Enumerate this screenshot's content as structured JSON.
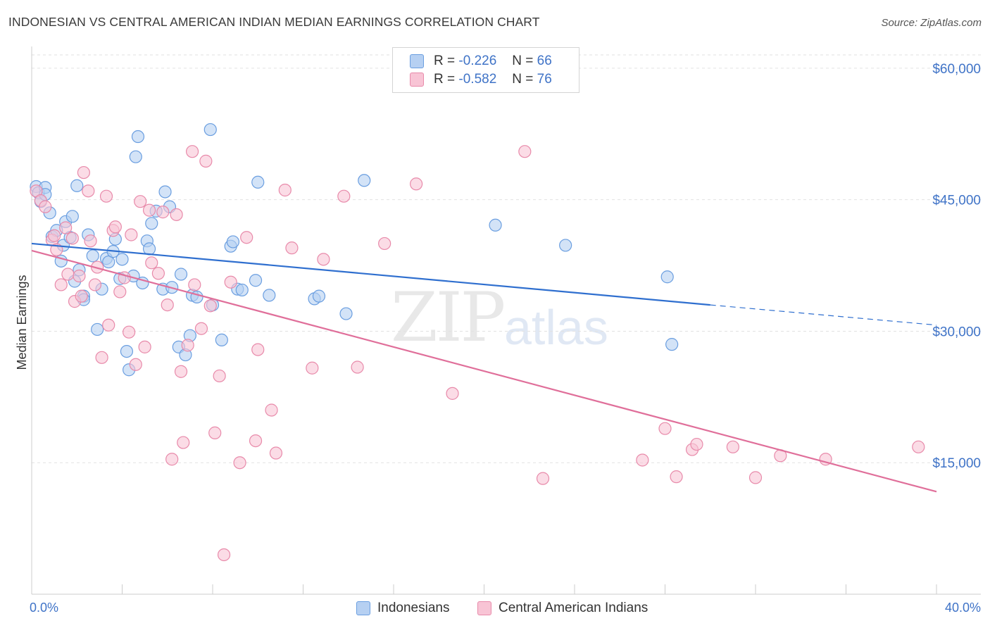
{
  "title": "INDONESIAN VS CENTRAL AMERICAN INDIAN MEDIAN EARNINGS CORRELATION CHART",
  "source": "Source: ZipAtlas.com",
  "legend": {
    "r_label": "R =",
    "n_label": "N =",
    "rows": [
      {
        "r": "-0.226",
        "n": "66"
      },
      {
        "r": "-0.582",
        "n": "76"
      }
    ]
  },
  "watermark": {
    "zip": "ZIP",
    "atlas": "atlas"
  },
  "colors": {
    "blue_fill": "#b6d0f2",
    "blue_stroke": "#6a9ee0",
    "blue_line": "#2f6fcf",
    "pink_fill": "#f8c4d5",
    "pink_stroke": "#e88aaa",
    "pink_line": "#e06f9a",
    "tick_text": "#3f73c7"
  },
  "chart_data": {
    "type": "scatter",
    "xlabel": "",
    "ylabel": "Median Earnings",
    "xlim": [
      0,
      40
    ],
    "ylim": [
      0,
      62000
    ],
    "x_tick_labels": [
      "0.0%",
      "40.0%"
    ],
    "y_ticks": [
      15000,
      30000,
      45000,
      60000
    ],
    "y_tick_labels": [
      "$15,000",
      "$30,000",
      "$45,000",
      "$60,000"
    ],
    "grid": true,
    "series": [
      {
        "name": "Indonesians",
        "points": [
          [
            0.2,
            46500
          ],
          [
            0.3,
            45800
          ],
          [
            0.4,
            44800
          ],
          [
            0.6,
            46400
          ],
          [
            0.6,
            45600
          ],
          [
            0.8,
            43500
          ],
          [
            0.9,
            40800
          ],
          [
            1.1,
            41500
          ],
          [
            1.3,
            38000
          ],
          [
            1.4,
            39800
          ],
          [
            1.5,
            42500
          ],
          [
            1.7,
            40700
          ],
          [
            1.8,
            43100
          ],
          [
            1.9,
            35700
          ],
          [
            2.0,
            46600
          ],
          [
            2.1,
            37000
          ],
          [
            2.3,
            34000
          ],
          [
            2.3,
            33600
          ],
          [
            2.5,
            41000
          ],
          [
            2.7,
            38600
          ],
          [
            2.9,
            30200
          ],
          [
            3.1,
            34800
          ],
          [
            3.3,
            38300
          ],
          [
            3.4,
            37900
          ],
          [
            3.6,
            39100
          ],
          [
            3.7,
            40500
          ],
          [
            3.9,
            36000
          ],
          [
            4.0,
            38200
          ],
          [
            4.2,
            27700
          ],
          [
            4.3,
            25600
          ],
          [
            4.5,
            36300
          ],
          [
            4.6,
            49900
          ],
          [
            4.7,
            52200
          ],
          [
            4.9,
            35500
          ],
          [
            5.1,
            40300
          ],
          [
            5.2,
            39400
          ],
          [
            5.3,
            42300
          ],
          [
            5.5,
            43700
          ],
          [
            5.8,
            34800
          ],
          [
            5.9,
            45900
          ],
          [
            6.1,
            44200
          ],
          [
            6.2,
            35000
          ],
          [
            6.5,
            28200
          ],
          [
            6.6,
            36500
          ],
          [
            6.8,
            27300
          ],
          [
            7.0,
            29500
          ],
          [
            7.1,
            34100
          ],
          [
            7.3,
            33900
          ],
          [
            7.9,
            53000
          ],
          [
            8.0,
            33000
          ],
          [
            8.4,
            29000
          ],
          [
            8.8,
            39700
          ],
          [
            8.9,
            40200
          ],
          [
            9.1,
            34800
          ],
          [
            9.3,
            34700
          ],
          [
            9.9,
            35800
          ],
          [
            10.0,
            47000
          ],
          [
            10.5,
            34100
          ],
          [
            12.5,
            33700
          ],
          [
            12.7,
            34000
          ],
          [
            13.9,
            32000
          ],
          [
            14.7,
            47200
          ],
          [
            20.5,
            42100
          ],
          [
            23.6,
            39800
          ],
          [
            28.1,
            36200
          ],
          [
            28.3,
            28500
          ]
        ]
      },
      {
        "name": "Central American Indians",
        "points": [
          [
            0.2,
            46000
          ],
          [
            0.4,
            44900
          ],
          [
            0.6,
            44200
          ],
          [
            0.9,
            40400
          ],
          [
            1.0,
            40900
          ],
          [
            1.1,
            39300
          ],
          [
            1.3,
            35300
          ],
          [
            1.5,
            41800
          ],
          [
            1.6,
            36500
          ],
          [
            1.8,
            40600
          ],
          [
            1.9,
            33400
          ],
          [
            2.1,
            36300
          ],
          [
            2.2,
            34000
          ],
          [
            2.3,
            48100
          ],
          [
            2.5,
            46000
          ],
          [
            2.6,
            40300
          ],
          [
            2.8,
            35300
          ],
          [
            2.9,
            37300
          ],
          [
            3.1,
            27000
          ],
          [
            3.3,
            45400
          ],
          [
            3.4,
            30700
          ],
          [
            3.6,
            41500
          ],
          [
            3.7,
            41900
          ],
          [
            3.9,
            34500
          ],
          [
            4.1,
            36100
          ],
          [
            4.3,
            29900
          ],
          [
            4.4,
            41000
          ],
          [
            4.6,
            26200
          ],
          [
            4.8,
            44800
          ],
          [
            5.0,
            28200
          ],
          [
            5.2,
            43800
          ],
          [
            5.3,
            37800
          ],
          [
            5.6,
            36600
          ],
          [
            5.8,
            43600
          ],
          [
            6.0,
            33000
          ],
          [
            6.2,
            15400
          ],
          [
            6.4,
            43300
          ],
          [
            6.6,
            25400
          ],
          [
            6.7,
            17300
          ],
          [
            6.9,
            28400
          ],
          [
            7.1,
            50500
          ],
          [
            7.2,
            35300
          ],
          [
            7.5,
            30300
          ],
          [
            7.7,
            49400
          ],
          [
            7.9,
            32900
          ],
          [
            8.1,
            18400
          ],
          [
            8.3,
            24900
          ],
          [
            8.5,
            4500
          ],
          [
            8.8,
            35600
          ],
          [
            9.2,
            15000
          ],
          [
            9.5,
            40700
          ],
          [
            9.9,
            17500
          ],
          [
            10.0,
            27900
          ],
          [
            10.6,
            21000
          ],
          [
            10.8,
            16100
          ],
          [
            11.2,
            46100
          ],
          [
            11.5,
            39500
          ],
          [
            12.4,
            25800
          ],
          [
            12.9,
            38200
          ],
          [
            13.8,
            45400
          ],
          [
            14.4,
            25900
          ],
          [
            15.6,
            40000
          ],
          [
            17.0,
            46800
          ],
          [
            18.6,
            22900
          ],
          [
            21.8,
            50500
          ],
          [
            22.6,
            13200
          ],
          [
            27.0,
            15300
          ],
          [
            28.0,
            18900
          ],
          [
            28.5,
            13400
          ],
          [
            29.2,
            16500
          ],
          [
            29.4,
            17100
          ],
          [
            31.0,
            16800
          ],
          [
            32.0,
            13300
          ],
          [
            33.1,
            15800
          ],
          [
            35.1,
            15400
          ],
          [
            39.2,
            16800
          ]
        ]
      }
    ],
    "trendlines": [
      {
        "name": "Indonesians",
        "x": [
          0,
          30
        ],
        "y": [
          40000,
          33000
        ],
        "dashed_extension_to": [
          40,
          30700
        ]
      },
      {
        "name": "Central American Indians",
        "x": [
          0,
          40
        ],
        "y": [
          39200,
          11700
        ]
      }
    ]
  }
}
